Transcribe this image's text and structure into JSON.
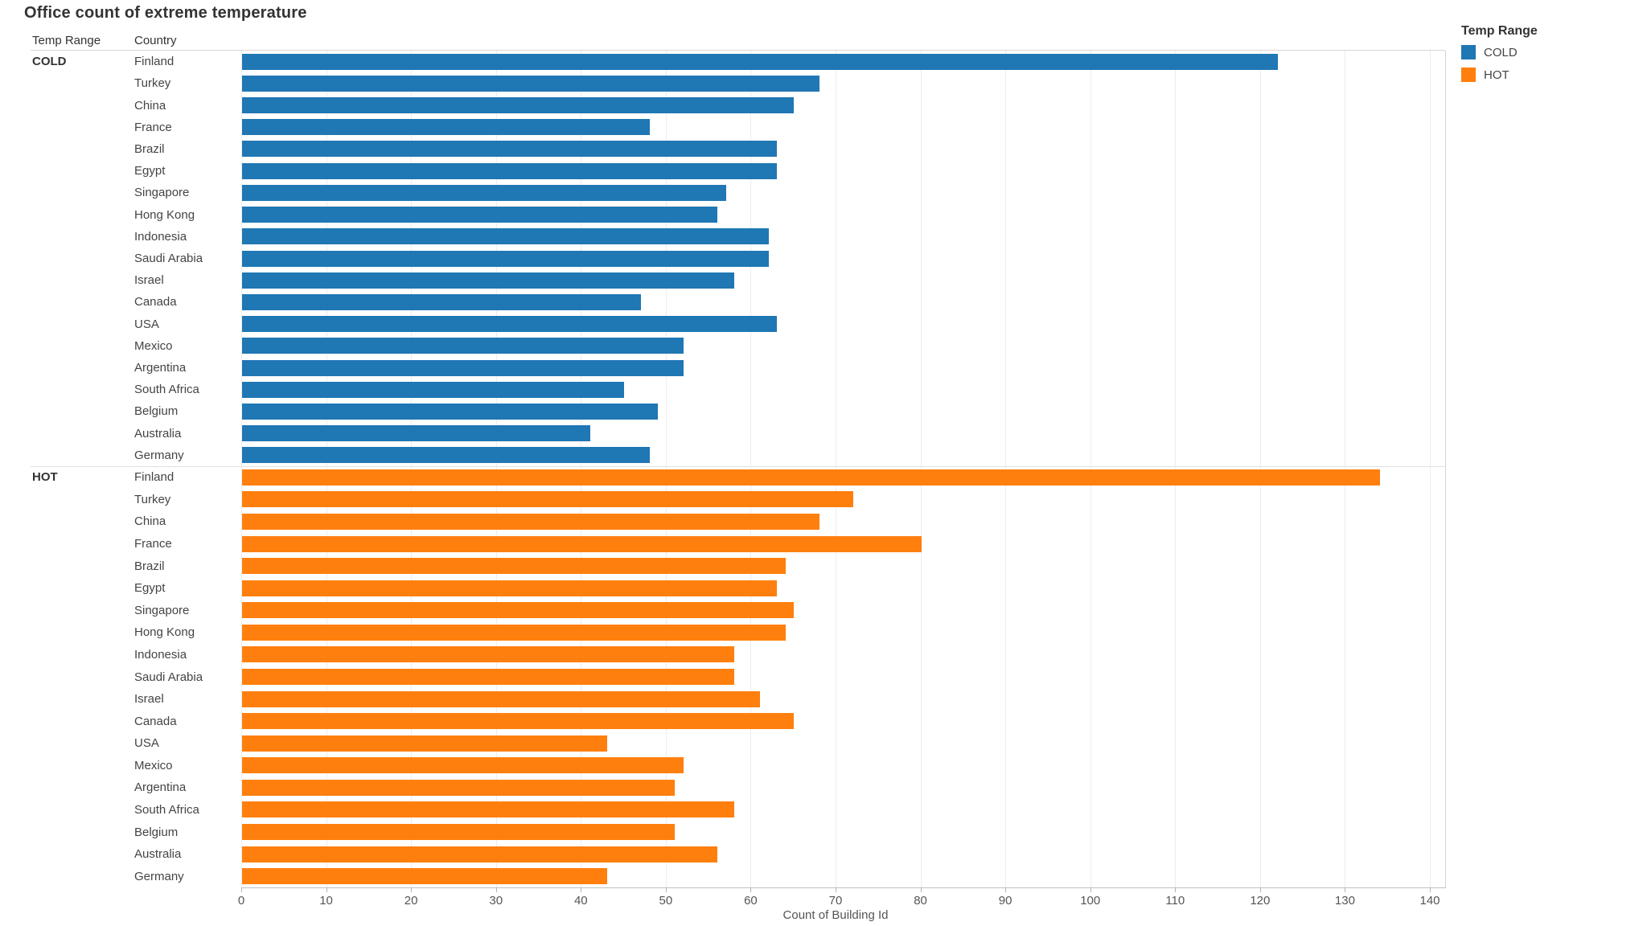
{
  "title": "Office count of extreme temperature",
  "row_headers": {
    "temp_range": "Temp Range",
    "country": "Country"
  },
  "legend": {
    "title": "Temp Range",
    "items": [
      {
        "label": "COLD",
        "color": "#1F77B4"
      },
      {
        "label": "HOT",
        "color": "#FF7F0E"
      }
    ]
  },
  "axis": {
    "label": "Count of Building Id",
    "ticks": [
      0,
      10,
      20,
      30,
      40,
      50,
      60,
      70,
      80,
      90,
      100,
      110,
      120,
      130,
      140
    ]
  },
  "chart_data": {
    "type": "bar",
    "orientation": "horizontal",
    "title": "Office count of extreme temperature",
    "xlabel": "Count of Building Id",
    "ylabel": "Country",
    "group_field": "Temp Range",
    "xlim": [
      0,
      140
    ],
    "xticks": [
      0,
      10,
      20,
      30,
      40,
      50,
      60,
      70,
      80,
      90,
      100,
      110,
      120,
      130,
      140
    ],
    "grid": true,
    "legend_position": "top-right",
    "categories": [
      "Finland",
      "Turkey",
      "China",
      "France",
      "Brazil",
      "Egypt",
      "Singapore",
      "Hong Kong",
      "Indonesia",
      "Saudi Arabia",
      "Israel",
      "Canada",
      "USA",
      "Mexico",
      "Argentina",
      "South Africa",
      "Belgium",
      "Australia",
      "Germany"
    ],
    "series": [
      {
        "name": "COLD",
        "color": "#1F77B4",
        "values": [
          122,
          68,
          65,
          48,
          63,
          63,
          57,
          56,
          62,
          62,
          58,
          47,
          63,
          52,
          52,
          45,
          49,
          41,
          48
        ]
      },
      {
        "name": "HOT",
        "color": "#FF7F0E",
        "values": [
          134,
          72,
          68,
          80,
          64,
          63,
          65,
          64,
          58,
          58,
          61,
          65,
          43,
          52,
          51,
          58,
          51,
          56,
          43
        ]
      }
    ]
  }
}
